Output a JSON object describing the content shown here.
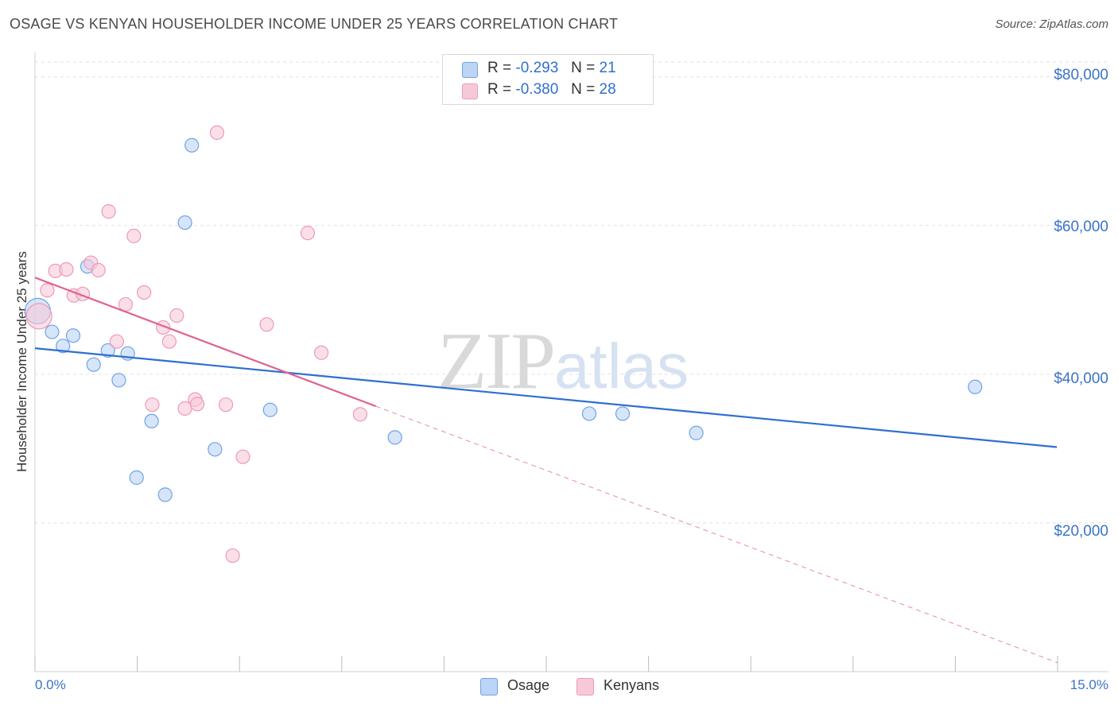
{
  "chart_data": {
    "type": "scatter",
    "title": "OSAGE VS KENYAN HOUSEHOLDER INCOME UNDER 25 YEARS CORRELATION CHART",
    "source": "Source: ZipAtlas.com",
    "xlabel": "",
    "ylabel": "Householder Income Under 25 years",
    "xlim": [
      0,
      15
    ],
    "ylim": [
      0,
      82000
    ],
    "x_tick_labels": [
      "0.0%",
      "15.0%"
    ],
    "y_ticks": [
      20000,
      40000,
      60000,
      80000
    ],
    "y_tick_labels": [
      "$20,000",
      "$40,000",
      "$60,000",
      "$80,000"
    ],
    "grid": true,
    "legend_position": "bottom-center",
    "stats": [
      {
        "r_label": "R =",
        "r_value": "-0.293",
        "n_label": "N =",
        "n_value": "21"
      },
      {
        "r_label": "R =",
        "r_value": "-0.380",
        "n_label": "N =",
        "n_value": "28"
      }
    ],
    "series": [
      {
        "name": "Osage",
        "color": "#6fa3e6",
        "fill": "#bcd4f5",
        "trend_color": "#2f6fd0",
        "trend": {
          "x0": 0,
          "y0": 43500,
          "x1": 14.99,
          "y1": 30200
        },
        "points": [
          {
            "x": 0.04,
            "y": 48500,
            "big": true
          },
          {
            "x": 0.25,
            "y": 45700
          },
          {
            "x": 0.41,
            "y": 43800
          },
          {
            "x": 0.56,
            "y": 45200
          },
          {
            "x": 0.77,
            "y": 54500
          },
          {
            "x": 0.86,
            "y": 41300
          },
          {
            "x": 1.07,
            "y": 43200
          },
          {
            "x": 1.23,
            "y": 39200
          },
          {
            "x": 1.36,
            "y": 42800
          },
          {
            "x": 1.49,
            "y": 26100
          },
          {
            "x": 1.71,
            "y": 33700
          },
          {
            "x": 1.91,
            "y": 23800
          },
          {
            "x": 2.2,
            "y": 60400
          },
          {
            "x": 2.3,
            "y": 70800
          },
          {
            "x": 2.64,
            "y": 29900
          },
          {
            "x": 3.45,
            "y": 35200
          },
          {
            "x": 5.28,
            "y": 31500
          },
          {
            "x": 8.13,
            "y": 34700
          },
          {
            "x": 8.62,
            "y": 34700
          },
          {
            "x": 9.7,
            "y": 32100
          },
          {
            "x": 13.79,
            "y": 38300
          }
        ]
      },
      {
        "name": "Kenyans",
        "color": "#ee9ab5",
        "fill": "#f7c9d8",
        "trend_color": "#e0628f",
        "trend": {
          "x0": 0,
          "y0": 53000,
          "x1": 5.0,
          "y1": 35700
        },
        "trend_dash_end": {
          "x": 15.0,
          "y": 1200
        },
        "points": [
          {
            "x": 0.06,
            "y": 47800,
            "big": true
          },
          {
            "x": 0.18,
            "y": 51300
          },
          {
            "x": 0.3,
            "y": 53900
          },
          {
            "x": 0.46,
            "y": 54100
          },
          {
            "x": 0.57,
            "y": 50600
          },
          {
            "x": 0.7,
            "y": 50800
          },
          {
            "x": 0.82,
            "y": 55000
          },
          {
            "x": 0.93,
            "y": 54000
          },
          {
            "x": 1.08,
            "y": 61900
          },
          {
            "x": 1.2,
            "y": 44400
          },
          {
            "x": 1.33,
            "y": 49400
          },
          {
            "x": 1.45,
            "y": 58600
          },
          {
            "x": 1.6,
            "y": 51000
          },
          {
            "x": 1.72,
            "y": 35900
          },
          {
            "x": 1.88,
            "y": 46300
          },
          {
            "x": 1.97,
            "y": 44400
          },
          {
            "x": 2.08,
            "y": 47900
          },
          {
            "x": 2.2,
            "y": 35400
          },
          {
            "x": 2.35,
            "y": 36600
          },
          {
            "x": 2.38,
            "y": 36000
          },
          {
            "x": 2.8,
            "y": 35900
          },
          {
            "x": 2.9,
            "y": 15600
          },
          {
            "x": 2.67,
            "y": 72500
          },
          {
            "x": 3.05,
            "y": 28900
          },
          {
            "x": 3.4,
            "y": 46700
          },
          {
            "x": 4.0,
            "y": 59000
          },
          {
            "x": 4.2,
            "y": 42900
          },
          {
            "x": 4.77,
            "y": 34600
          }
        ]
      }
    ]
  },
  "watermark": {
    "zip": "ZIP",
    "atlas": "atlas"
  }
}
